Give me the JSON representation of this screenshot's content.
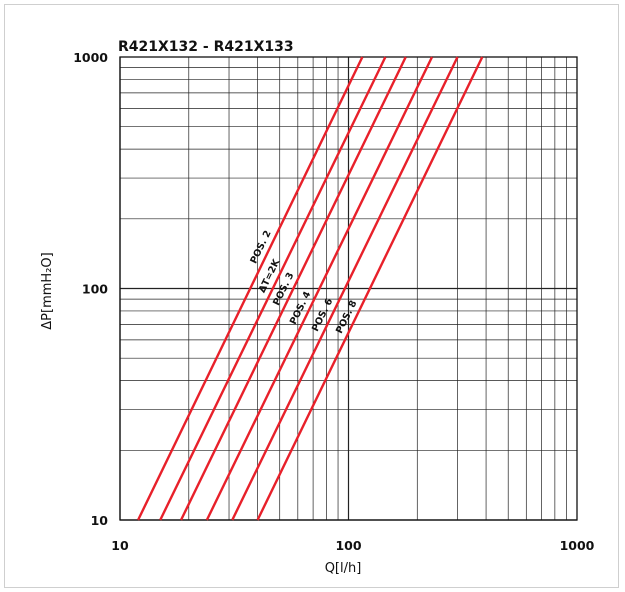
{
  "chart_data": {
    "type": "line",
    "title": "R421X132 - R421X133",
    "xlabel": "Q[l/h]",
    "ylabel": "ΔP[mmH₂O]",
    "xscale": "log",
    "yscale": "log",
    "xlim": [
      10,
      1000
    ],
    "ylim": [
      10,
      1000
    ],
    "xticks": [
      {
        "value": 10,
        "label": "10"
      },
      {
        "value": 100,
        "label": "100"
      },
      {
        "value": 1000,
        "label": "1000"
      }
    ],
    "yticks": [
      {
        "value": 10,
        "label": "10"
      },
      {
        "value": 100,
        "label": "100"
      },
      {
        "value": 1000,
        "label": "1000"
      }
    ],
    "grid": true,
    "line_color": "#e8202a",
    "series": [
      {
        "name": "POS. 2",
        "x": [
          12,
          115
        ],
        "y": [
          10,
          1000
        ]
      },
      {
        "name": "ΔT=2K",
        "x": [
          15,
          145
        ],
        "y": [
          10,
          1000
        ]
      },
      {
        "name": "POS. 3",
        "x": [
          18.5,
          178
        ],
        "y": [
          10,
          1000
        ]
      },
      {
        "name": "POS. 4",
        "x": [
          24,
          232
        ],
        "y": [
          10,
          1000
        ]
      },
      {
        "name": "POS. 6",
        "x": [
          31,
          300
        ],
        "y": [
          10,
          1000
        ]
      },
      {
        "name": "POS. 8",
        "x": [
          40,
          385
        ],
        "y": [
          10,
          1000
        ]
      }
    ]
  }
}
